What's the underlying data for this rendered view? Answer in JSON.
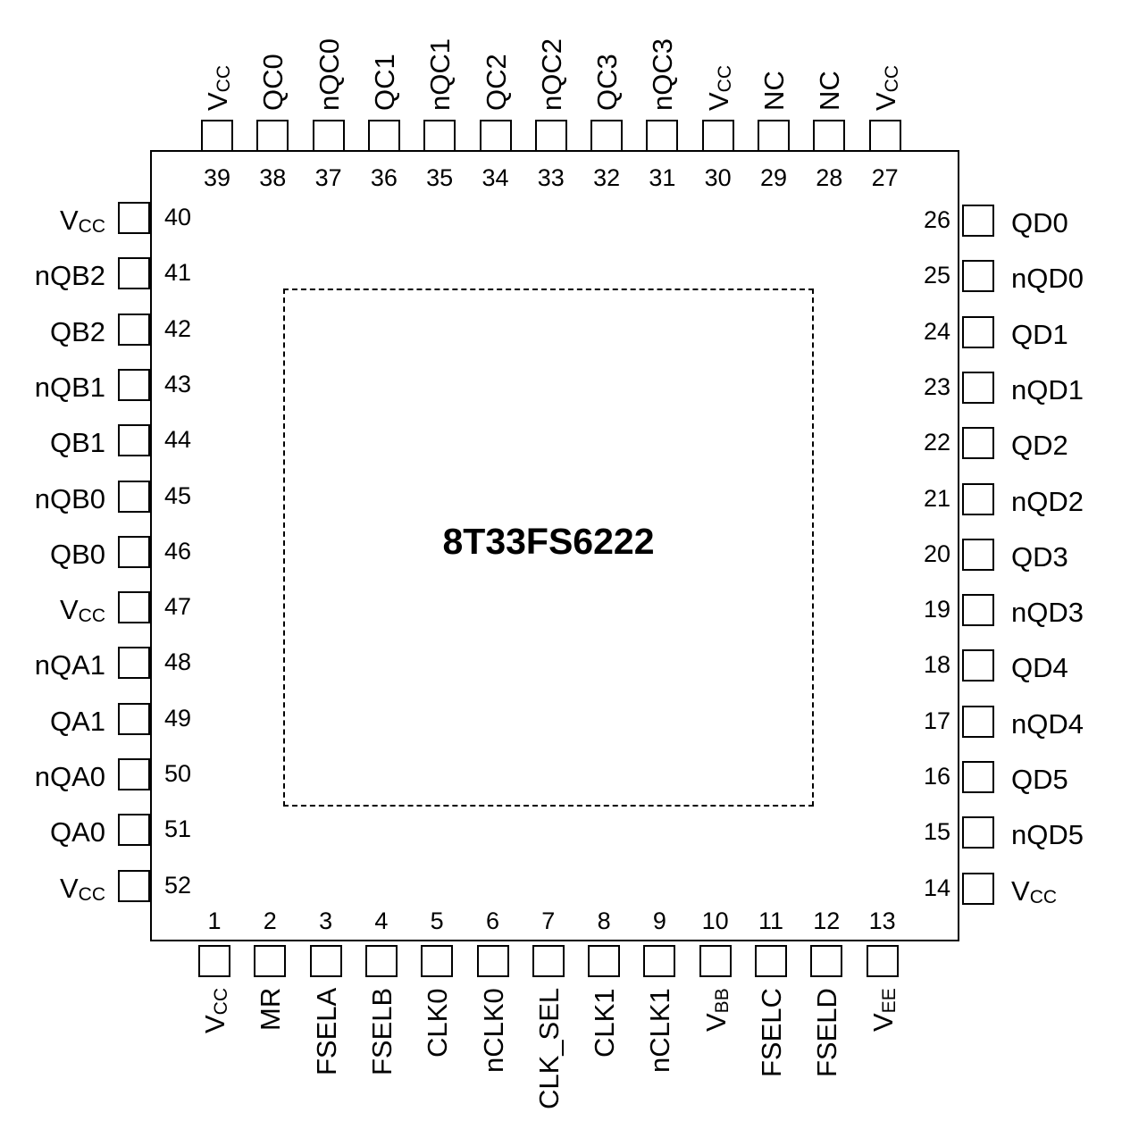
{
  "part_number": "8T33FS6222",
  "colors": {
    "line": "#000000",
    "background": "#ffffff"
  },
  "pins": {
    "top": [
      {
        "num": "39",
        "name": "V",
        "sub": "CC"
      },
      {
        "num": "38",
        "name": "QC0",
        "sub": ""
      },
      {
        "num": "37",
        "name": "nQC0",
        "sub": ""
      },
      {
        "num": "36",
        "name": "QC1",
        "sub": ""
      },
      {
        "num": "35",
        "name": "nQC1",
        "sub": ""
      },
      {
        "num": "34",
        "name": "QC2",
        "sub": ""
      },
      {
        "num": "33",
        "name": "nQC2",
        "sub": ""
      },
      {
        "num": "32",
        "name": "QC3",
        "sub": ""
      },
      {
        "num": "31",
        "name": "nQC3",
        "sub": ""
      },
      {
        "num": "30",
        "name": "V",
        "sub": "CC"
      },
      {
        "num": "29",
        "name": "NC",
        "sub": ""
      },
      {
        "num": "28",
        "name": "NC",
        "sub": ""
      },
      {
        "num": "27",
        "name": "V",
        "sub": "CC"
      }
    ],
    "left": [
      {
        "num": "40",
        "name": "V",
        "sub": "CC"
      },
      {
        "num": "41",
        "name": "nQB2",
        "sub": ""
      },
      {
        "num": "42",
        "name": "QB2",
        "sub": ""
      },
      {
        "num": "43",
        "name": "nQB1",
        "sub": ""
      },
      {
        "num": "44",
        "name": "QB1",
        "sub": ""
      },
      {
        "num": "45",
        "name": "nQB0",
        "sub": ""
      },
      {
        "num": "46",
        "name": "QB0",
        "sub": ""
      },
      {
        "num": "47",
        "name": "V",
        "sub": "CC"
      },
      {
        "num": "48",
        "name": "nQA1",
        "sub": ""
      },
      {
        "num": "49",
        "name": "QA1",
        "sub": ""
      },
      {
        "num": "50",
        "name": "nQA0",
        "sub": ""
      },
      {
        "num": "51",
        "name": "QA0",
        "sub": ""
      },
      {
        "num": "52",
        "name": "V",
        "sub": "CC"
      }
    ],
    "right": [
      {
        "num": "26",
        "name": "QD0",
        "sub": ""
      },
      {
        "num": "25",
        "name": "nQD0",
        "sub": ""
      },
      {
        "num": "24",
        "name": "QD1",
        "sub": ""
      },
      {
        "num": "23",
        "name": "nQD1",
        "sub": ""
      },
      {
        "num": "22",
        "name": "QD2",
        "sub": ""
      },
      {
        "num": "21",
        "name": "nQD2",
        "sub": ""
      },
      {
        "num": "20",
        "name": "QD3",
        "sub": ""
      },
      {
        "num": "19",
        "name": "nQD3",
        "sub": ""
      },
      {
        "num": "18",
        "name": "QD4",
        "sub": ""
      },
      {
        "num": "17",
        "name": "nQD4",
        "sub": ""
      },
      {
        "num": "16",
        "name": "QD5",
        "sub": ""
      },
      {
        "num": "15",
        "name": "nQD5",
        "sub": ""
      },
      {
        "num": "14",
        "name": "V",
        "sub": "CC"
      }
    ],
    "bottom": [
      {
        "num": "1",
        "name": "V",
        "sub": "CC"
      },
      {
        "num": "2",
        "name": "MR",
        "sub": ""
      },
      {
        "num": "3",
        "name": "FSELA",
        "sub": ""
      },
      {
        "num": "4",
        "name": "FSELB",
        "sub": ""
      },
      {
        "num": "5",
        "name": "CLK0",
        "sub": ""
      },
      {
        "num": "6",
        "name": "nCLK0",
        "sub": ""
      },
      {
        "num": "7",
        "name": "CLK_SEL",
        "sub": ""
      },
      {
        "num": "8",
        "name": "CLK1",
        "sub": ""
      },
      {
        "num": "9",
        "name": "nCLK1",
        "sub": ""
      },
      {
        "num": "10",
        "name": "V",
        "sub": "BB"
      },
      {
        "num": "11",
        "name": "FSELC",
        "sub": ""
      },
      {
        "num": "12",
        "name": "FSELD",
        "sub": ""
      },
      {
        "num": "13",
        "name": "V",
        "sub": "EE"
      }
    ]
  }
}
